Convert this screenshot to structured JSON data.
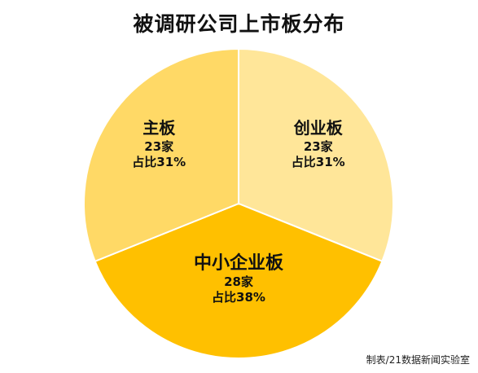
{
  "chart_data": {
    "type": "pie",
    "title": "被调研公司上市板分布",
    "slices": [
      {
        "name": "创业板",
        "count_label": "23家",
        "share_label": "占比31%",
        "value": 23,
        "percent": 31,
        "color": "#FFE699"
      },
      {
        "name": "中小企业板",
        "count_label": "28家",
        "share_label": "占比38%",
        "value": 28,
        "percent": 38,
        "color": "#FFC000"
      },
      {
        "name": "主板",
        "count_label": "23家",
        "share_label": "占比31%",
        "value": 23,
        "percent": 31,
        "color": "#FFD966"
      }
    ]
  },
  "source": "制表/21数据新闻实验室"
}
